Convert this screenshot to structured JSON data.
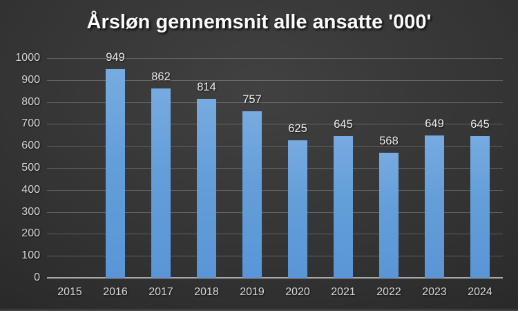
{
  "title": "Årsløn gennemsnit alle ansatte '000'",
  "colors": {
    "background_center": "#414141",
    "background_edge": "#1d1d1d",
    "bar_top": "#77ABE0",
    "bar_bottom": "#5A96D7",
    "gridline": "rgba(255,255,255,0.22)",
    "axis_line": "#A8A8A8",
    "tick_label": "#D9D9D9",
    "data_label": "#EDEDED",
    "title_color": "#FAFAFA"
  },
  "chart_data": {
    "type": "bar",
    "title": "Årsløn gennemsnit alle ansatte '000'",
    "categories": [
      "2015",
      "2016",
      "2017",
      "2018",
      "2019",
      "2020",
      "2021",
      "2022",
      "2023",
      "2024"
    ],
    "values": [
      null,
      949,
      862,
      814,
      757,
      625,
      645,
      568,
      649,
      645
    ],
    "data_labels": [
      "",
      "949",
      "862",
      "814",
      "757",
      "625",
      "645",
      "568",
      "649",
      "645"
    ],
    "xlabel": "",
    "ylabel": "",
    "ylim": [
      0,
      1000
    ],
    "ytick_step": 100,
    "grid": true,
    "legend": false
  }
}
